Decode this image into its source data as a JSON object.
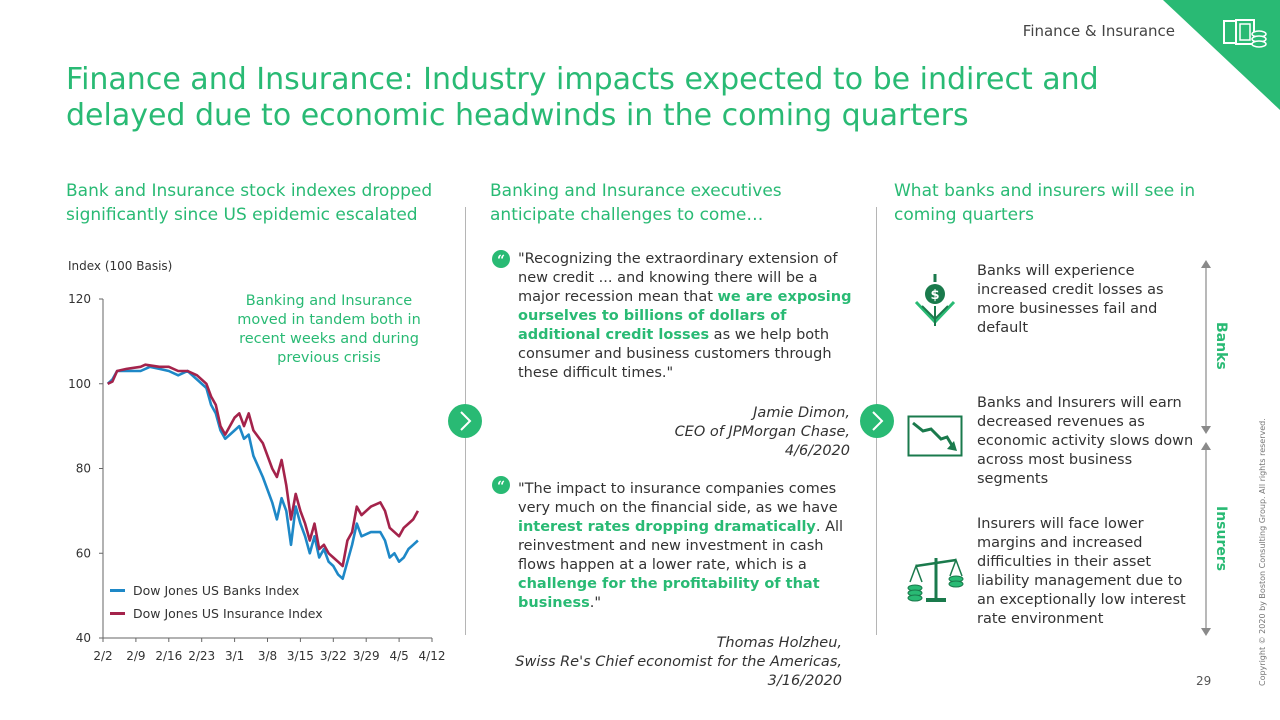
{
  "header": {
    "section_tag": "Finance & Insurance",
    "corner_icon": "money-stack-icon"
  },
  "title": "Finance and Insurance: Industry impacts expected to be indirect and delayed due to economic headwinds in the coming quarters",
  "columns": {
    "left": {
      "heading": "Bank and Insurance stock indexes dropped significantly since US epidemic escalated"
    },
    "middle": {
      "heading": "Banking and Insurance executives anticipate challenges to come…"
    },
    "right": {
      "heading": "What banks and insurers will see in coming quarters"
    }
  },
  "chart_data": {
    "type": "line",
    "ylabel": "Index (100 Basis)",
    "annotation": "Banking and Insurance moved in tandem both in recent weeks and during previous crisis",
    "ylim": [
      40,
      120
    ],
    "xlim": [
      0,
      70
    ],
    "yticks": [
      40,
      60,
      80,
      100,
      120
    ],
    "xticks": [
      {
        "x": 0,
        "label": "2/2"
      },
      {
        "x": 7,
        "label": "2/9"
      },
      {
        "x": 14,
        "label": "2/16"
      },
      {
        "x": 21,
        "label": "2/23"
      },
      {
        "x": 28,
        "label": "3/1"
      },
      {
        "x": 35,
        "label": "3/8"
      },
      {
        "x": 42,
        "label": "3/15"
      },
      {
        "x": 49,
        "label": "3/22"
      },
      {
        "x": 56,
        "label": "3/29"
      },
      {
        "x": 63,
        "label": "4/5"
      },
      {
        "x": 70,
        "label": "4/12"
      }
    ],
    "series": [
      {
        "name": "Dow Jones US Banks Index",
        "color": "#1E88C7",
        "points": [
          [
            1,
            100
          ],
          [
            2,
            101
          ],
          [
            3,
            103
          ],
          [
            5,
            103
          ],
          [
            8,
            103
          ],
          [
            10,
            104
          ],
          [
            12,
            103.5
          ],
          [
            14,
            103
          ],
          [
            16,
            102
          ],
          [
            18,
            103
          ],
          [
            20,
            101
          ],
          [
            22,
            99
          ],
          [
            23,
            95
          ],
          [
            24,
            93
          ],
          [
            25,
            89
          ],
          [
            26,
            87
          ],
          [
            27,
            88
          ],
          [
            28,
            89
          ],
          [
            29,
            90
          ],
          [
            30,
            87
          ],
          [
            31,
            88
          ],
          [
            32,
            83
          ],
          [
            34,
            78
          ],
          [
            36,
            72
          ],
          [
            37,
            68
          ],
          [
            38,
            73
          ],
          [
            39,
            70
          ],
          [
            40,
            62
          ],
          [
            41,
            71
          ],
          [
            42,
            67
          ],
          [
            43,
            64
          ],
          [
            44,
            60
          ],
          [
            45,
            64
          ],
          [
            46,
            59
          ],
          [
            47,
            61
          ],
          [
            48,
            58
          ],
          [
            49,
            57
          ],
          [
            50,
            55
          ],
          [
            51,
            54
          ],
          [
            52,
            58
          ],
          [
            53,
            62
          ],
          [
            54,
            67
          ],
          [
            55,
            64
          ],
          [
            57,
            65
          ],
          [
            59,
            65
          ],
          [
            60,
            63
          ],
          [
            61,
            59
          ],
          [
            62,
            60
          ],
          [
            63,
            58
          ],
          [
            64,
            59
          ],
          [
            65,
            61
          ],
          [
            66,
            62
          ],
          [
            67,
            63
          ]
        ]
      },
      {
        "name": "Dow Jones US Insurance Index",
        "color": "#A4234B",
        "points": [
          [
            1,
            100
          ],
          [
            2,
            100.5
          ],
          [
            3,
            103
          ],
          [
            5,
            103.5
          ],
          [
            8,
            104
          ],
          [
            9,
            104.5
          ],
          [
            12,
            104
          ],
          [
            14,
            104
          ],
          [
            16,
            103
          ],
          [
            18,
            103
          ],
          [
            20,
            102
          ],
          [
            22,
            100
          ],
          [
            23,
            97
          ],
          [
            24,
            95
          ],
          [
            25,
            90
          ],
          [
            26,
            88
          ],
          [
            27,
            90
          ],
          [
            28,
            92
          ],
          [
            29,
            93
          ],
          [
            30,
            90
          ],
          [
            31,
            93
          ],
          [
            32,
            89
          ],
          [
            34,
            86
          ],
          [
            36,
            80
          ],
          [
            37,
            78
          ],
          [
            38,
            82
          ],
          [
            39,
            76
          ],
          [
            40,
            68
          ],
          [
            41,
            74
          ],
          [
            42,
            70
          ],
          [
            43,
            67
          ],
          [
            44,
            63
          ],
          [
            45,
            67
          ],
          [
            46,
            61
          ],
          [
            47,
            62
          ],
          [
            48,
            60
          ],
          [
            49,
            59
          ],
          [
            50,
            58
          ],
          [
            51,
            57
          ],
          [
            52,
            63
          ],
          [
            53,
            65
          ],
          [
            54,
            71
          ],
          [
            55,
            69
          ],
          [
            57,
            71
          ],
          [
            59,
            72
          ],
          [
            60,
            70
          ],
          [
            61,
            66
          ],
          [
            62,
            65
          ],
          [
            63,
            64
          ],
          [
            64,
            66
          ],
          [
            65,
            67
          ],
          [
            66,
            68
          ],
          [
            67,
            70
          ]
        ]
      }
    ]
  },
  "quotes": [
    {
      "text_pre": "\"Recognizing the extraordinary extension of new credit ... and knowing there will be a major recession mean that ",
      "text_hl": "we are exposing ourselves to billions of dollars of additional credit losses",
      "text_post": " as we help both consumer and business customers through these difficult times.\"",
      "author": "Jamie Dimon,",
      "role": "CEO of JPMorgan Chase,",
      "date": "4/6/2020"
    },
    {
      "text_pre": "\"The impact to insurance companies comes very much on the financial side, as we have ",
      "text_hl": "interest rates dropping dramatically",
      "text_mid": ". All reinvestment and new investment in cash flows happen at a lower rate, which is a ",
      "text_hl2": "challenge for the profitability of that business",
      "text_post": ".\"",
      "author": "Thomas Holzheu,",
      "role": "Swiss Re's Chief economist for the Americas,",
      "date": "3/16/2020"
    }
  ],
  "impacts": [
    {
      "icon": "dollar-down-arrow-icon",
      "text": "Banks will experience increased credit losses as more businesses fail and default"
    },
    {
      "icon": "declining-chart-icon",
      "text": "Banks and Insurers will earn decreased revenues as economic activity slows down across most business segments"
    },
    {
      "icon": "balance-scale-icon",
      "text": "Insurers will face lower margins and increased difficulties in their asset liability management due to an exceptionally low interest rate environment"
    }
  ],
  "side_labels": {
    "banks": "Banks",
    "insurers": "Insurers"
  },
  "footer": {
    "page_number": "29",
    "copyright": "Copyright © 2020 by Boston Consulting Group. All rights reserved."
  },
  "colors": {
    "accent": "#29BA74",
    "banks": "#1E88C7",
    "insurance": "#A4234B"
  }
}
